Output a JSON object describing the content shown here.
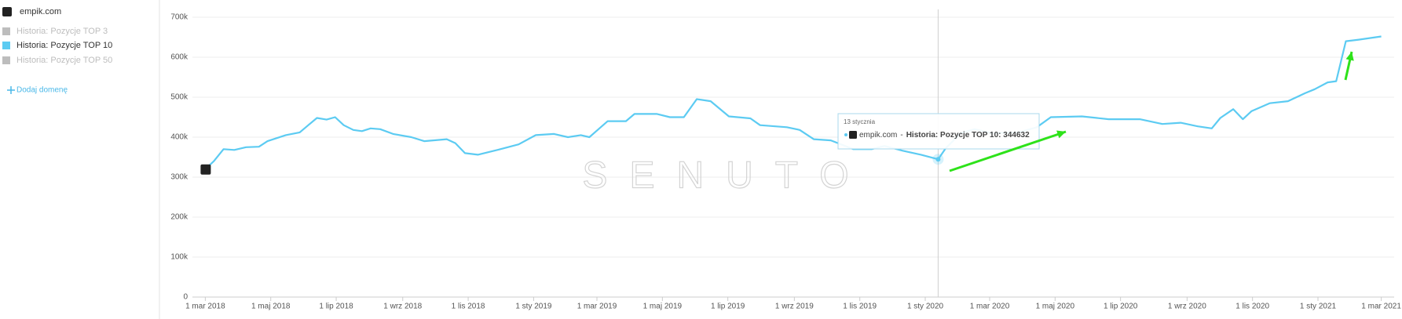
{
  "sidebar": {
    "domain": "empik.com",
    "legend": [
      {
        "name": "Historia: Pozycje TOP 3",
        "color": "#bdbdbd"
      },
      {
        "name": "Historia: Pozycje TOP 50",
        "color": "#bdbdbd"
      }
    ],
    "add": "Dodaj domenę"
  },
  "chart_data": {
    "type": "line",
    "x": [
      "2018-03-01",
      "2018-03-09",
      "2018-03-18",
      "2018-03-28",
      "2018-04-08",
      "2018-04-20",
      "2018-04-28",
      "2018-05-15",
      "2018-05-28",
      "2018-06-05",
      "2018-06-13",
      "2018-06-22",
      "2018-06-30",
      "2018-07-08",
      "2018-07-17",
      "2018-07-25",
      "2018-08-02",
      "2018-08-11",
      "2018-08-23",
      "2018-09-09",
      "2018-09-21",
      "2018-10-12",
      "2018-10-20",
      "2018-10-29",
      "2018-11-10",
      "2018-12-01",
      "2018-12-18",
      "2019-01-03",
      "2019-01-20",
      "2019-02-02",
      "2019-02-14",
      "2019-02-22",
      "2019-03-11",
      "2019-03-28",
      "2019-04-05",
      "2019-04-26",
      "2019-05-08",
      "2019-05-21",
      "2019-06-02",
      "2019-06-15",
      "2019-07-02",
      "2019-07-22",
      "2019-07-31",
      "2019-08-25",
      "2019-09-06",
      "2019-09-19",
      "2019-10-05",
      "2019-10-26",
      "2019-11-12",
      "2019-11-24",
      "2019-12-11",
      "2019-12-28",
      "2020-01-13",
      "2020-01-20",
      "2020-02-03",
      "2020-02-16",
      "2020-03-03",
      "2020-03-28",
      "2020-04-14",
      "2020-04-27",
      "2020-05-26",
      "2020-06-20",
      "2020-07-19",
      "2020-08-09",
      "2020-08-26",
      "2020-09-11",
      "2020-09-24",
      "2020-10-02",
      "2020-10-14",
      "2020-10-23",
      "2020-10-31",
      "2020-11-17",
      "2020-12-04",
      "2020-12-20",
      "2020-12-29",
      "2021-01-10",
      "2021-01-18",
      "2021-01-27",
      "2021-02-08",
      "2021-03-01"
    ],
    "series": [
      {
        "name": "Historia: Pozycje TOP 10",
        "color": "#5ccbf2",
        "values": [
          320000,
          340000,
          370000,
          368000,
          375000,
          376000,
          390000,
          405000,
          412000,
          430000,
          448000,
          444000,
          450000,
          430000,
          418000,
          415000,
          422000,
          420000,
          408000,
          400000,
          390000,
          395000,
          385000,
          360000,
          356000,
          370000,
          382000,
          405000,
          408000,
          400000,
          405000,
          400000,
          440000,
          440000,
          458000,
          458000,
          450000,
          450000,
          495000,
          490000,
          452000,
          447000,
          430000,
          425000,
          418000,
          395000,
          392000,
          370000,
          370000,
          378000,
          366000,
          356000,
          344632,
          372000,
          410000,
          420000,
          410000,
          412000,
          425000,
          450000,
          452000,
          445000,
          445000,
          433000,
          436000,
          427000,
          422000,
          448000,
          470000,
          445000,
          465000,
          485000,
          490000,
          510000,
          520000,
          537000,
          540000,
          640000,
          644000,
          652000
        ]
      }
    ],
    "xlim": [
      "2018-02-17",
      "2021-03-13"
    ],
    "xticks": [
      {
        "value": "2018-03-01",
        "label": "1 mar 2018"
      },
      {
        "value": "2018-05-01",
        "label": "1 maj 2018"
      },
      {
        "value": "2018-07-01",
        "label": "1 lip 2018"
      },
      {
        "value": "2018-09-01",
        "label": "1 wrz 2018"
      },
      {
        "value": "2018-11-01",
        "label": "1 lis 2018"
      },
      {
        "value": "2019-01-01",
        "label": "1 sty 2019"
      },
      {
        "value": "2019-03-01",
        "label": "1 mar 2019"
      },
      {
        "value": "2019-05-01",
        "label": "1 maj 2019"
      },
      {
        "value": "2019-07-01",
        "label": "1 lip 2019"
      },
      {
        "value": "2019-09-01",
        "label": "1 wrz 2019"
      },
      {
        "value": "2019-11-01",
        "label": "1 lis 2019"
      },
      {
        "value": "2020-01-01",
        "label": "1 sty 2020"
      },
      {
        "value": "2020-03-01",
        "label": "1 mar 2020"
      },
      {
        "value": "2020-05-01",
        "label": "1 maj 2020"
      },
      {
        "value": "2020-07-01",
        "label": "1 lip 2020"
      },
      {
        "value": "2020-09-01",
        "label": "1 wrz 2020"
      },
      {
        "value": "2020-11-01",
        "label": "1 lis 2020"
      },
      {
        "value": "2021-01-01",
        "label": "1 sty 2021"
      },
      {
        "value": "2021-03-01",
        "label": "1 mar 2021"
      }
    ],
    "ylim": [
      0,
      700000
    ],
    "yticks": [
      0,
      {
        "value": 100000,
        "label": "100k"
      },
      {
        "value": 200000,
        "label": "200k"
      },
      {
        "value": 300000,
        "label": "300k"
      },
      {
        "value": 400000,
        "label": "400k"
      },
      {
        "value": 500000,
        "label": "500k"
      },
      {
        "value": 600000,
        "label": "600k"
      },
      {
        "value": 700000,
        "label": "700k"
      }
    ],
    "grid": true,
    "watermark": "SENUTO",
    "tooltip": {
      "x": "2020-01-13",
      "title": "13 stycznia",
      "domain": "empik.com",
      "separator": "-",
      "text": "Historia: Pozycje TOP 10: 344632"
    }
  }
}
